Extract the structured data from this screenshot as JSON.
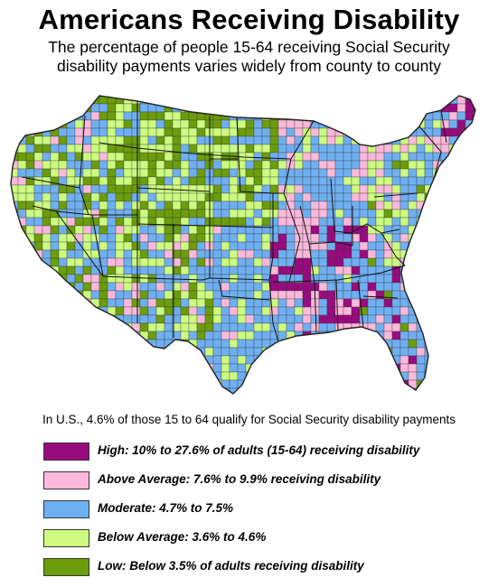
{
  "title": "Americans Receiving Disability",
  "subtitle_line1": "The percentage of people 15-64 receiving Social Security",
  "subtitle_line2": "disability payments varies widely from county to county",
  "note": "In U.S., 4.6% of those 15 to 64 qualify for Social Security disability payments",
  "colors": {
    "high": "#990a7f",
    "above_average": "#fbb9dc",
    "moderate": "#6fb0f2",
    "below_average": "#cdfc80",
    "low": "#6b9d0c",
    "ocean": "#ffffff",
    "border": "#222222"
  },
  "legend": [
    {
      "key": "high",
      "label": "High: 10% to 27.6% of adults (15-64) receiving disability",
      "color": "#990a7f"
    },
    {
      "key": "above_average",
      "label": "Above Average: 7.6% to 9.9% receiving disability",
      "color": "#fbb9dc"
    },
    {
      "key": "moderate",
      "label": "Moderate: 4.7% to 7.5%",
      "color": "#6fb0f2"
    },
    {
      "key": "below_average",
      "label": "Below Average: 3.6% to 4.6%",
      "color": "#cdfc80"
    },
    {
      "key": "low",
      "label": "Low: Below 3.5% of adults receiving disability",
      "color": "#6b9d0c"
    }
  ]
}
